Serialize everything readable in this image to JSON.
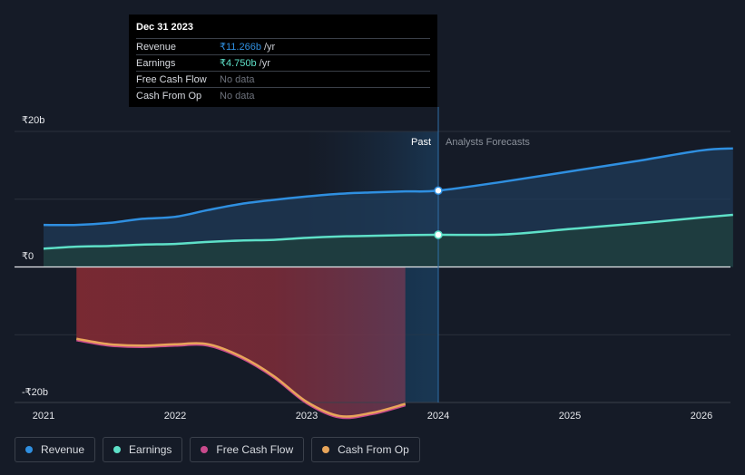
{
  "tooltip": {
    "date": "Dec 31 2023",
    "rows": [
      {
        "label": "Revenue",
        "value": "₹11.266b",
        "unit": "/yr",
        "color": "#2f8fe0"
      },
      {
        "label": "Earnings",
        "value": "₹4.750b",
        "unit": "/yr",
        "color": "#5ee0c8"
      },
      {
        "label": "Free Cash Flow",
        "value": "No data"
      },
      {
        "label": "Cash From Op",
        "value": "No data"
      }
    ]
  },
  "chart_data": {
    "type": "area",
    "y_tick_labels": [
      "₹20b",
      "₹0",
      "-₹20b"
    ],
    "ylim": [
      -20,
      20
    ],
    "xlim": [
      2021,
      2026.24
    ],
    "x_tick_labels": [
      "2021",
      "2022",
      "2023",
      "2024",
      "2025",
      "2026"
    ],
    "x_ticks": [
      2021,
      2022,
      2023,
      2024,
      2025,
      2026
    ],
    "divider_x": 2024.0,
    "past_label": "Past",
    "forecast_label": "Analysts Forecasts",
    "series": [
      {
        "name": "Revenue",
        "color": "#2f8fe0",
        "x": [
          2021.0,
          2021.25,
          2021.5,
          2021.75,
          2022.0,
          2022.25,
          2022.5,
          2022.75,
          2023.0,
          2023.25,
          2023.5,
          2023.75,
          2024.0,
          2024.5,
          2025.0,
          2025.5,
          2026.0,
          2026.24
        ],
        "values": [
          6.2,
          6.2,
          6.5,
          7.1,
          7.4,
          8.4,
          9.3,
          9.9,
          10.4,
          10.8,
          11.0,
          11.15,
          11.27,
          12.6,
          14.1,
          15.6,
          17.2,
          17.5
        ]
      },
      {
        "name": "Earnings",
        "color": "#5ee0c8",
        "x": [
          2021.0,
          2021.25,
          2021.5,
          2021.75,
          2022.0,
          2022.25,
          2022.5,
          2022.75,
          2023.0,
          2023.25,
          2023.5,
          2023.75,
          2024.0,
          2024.5,
          2025.0,
          2025.5,
          2026.0,
          2026.24
        ],
        "values": [
          2.7,
          3.0,
          3.1,
          3.3,
          3.4,
          3.7,
          3.9,
          4.0,
          4.3,
          4.5,
          4.6,
          4.7,
          4.75,
          4.8,
          5.6,
          6.4,
          7.3,
          7.7
        ]
      },
      {
        "name": "Free Cash Flow",
        "color": "#c94a8c",
        "x": [
          2021.25,
          2021.5,
          2021.75,
          2022.0,
          2022.25,
          2022.5,
          2022.75,
          2023.0,
          2023.25,
          2023.5,
          2023.75
        ],
        "values": [
          -10.8,
          -11.6,
          -11.8,
          -11.6,
          -11.6,
          -13.4,
          -16.3,
          -20.1,
          -22.2,
          -21.7,
          -20.4
        ]
      },
      {
        "name": "Cash From Op",
        "color": "#e8a55a",
        "x": [
          2021.25,
          2021.5,
          2021.75,
          2022.0,
          2022.25,
          2022.5,
          2022.75,
          2023.0,
          2023.25,
          2023.5,
          2023.75
        ],
        "values": [
          -10.6,
          -11.4,
          -11.6,
          -11.4,
          -11.4,
          -13.2,
          -16.1,
          -19.9,
          -22.0,
          -21.5,
          -20.2
        ]
      }
    ]
  },
  "legend": [
    {
      "label": "Revenue",
      "color": "#2f8fe0"
    },
    {
      "label": "Earnings",
      "color": "#5ee0c8"
    },
    {
      "label": "Free Cash Flow",
      "color": "#c94a8c"
    },
    {
      "label": "Cash From Op",
      "color": "#e8a55a"
    }
  ]
}
